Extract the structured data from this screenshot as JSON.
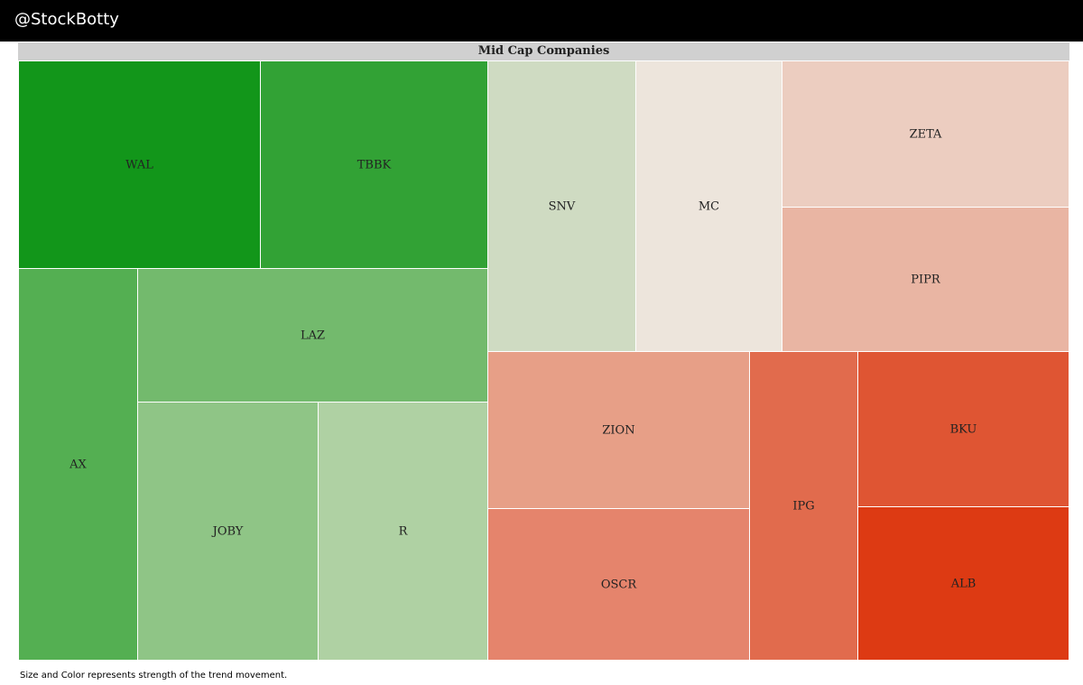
{
  "header": {
    "brand": "@StockBotty"
  },
  "footnote": "Size and Color represents strength of the trend movement.",
  "chart_data": {
    "type": "treemap",
    "title": "Mid Cap Companies",
    "items": [
      {
        "label": "WAL",
        "color": "#12961a",
        "direction": "up"
      },
      {
        "label": "TBBK",
        "color": "#32a235",
        "direction": "up"
      },
      {
        "label": "AX",
        "color": "#54af52",
        "direction": "up"
      },
      {
        "label": "LAZ",
        "color": "#73ba6d",
        "direction": "up"
      },
      {
        "label": "JOBY",
        "color": "#8fc586",
        "direction": "up"
      },
      {
        "label": "R",
        "color": "#afd1a3",
        "direction": "up"
      },
      {
        "label": "SNV",
        "color": "#cfdbc2",
        "direction": "up"
      },
      {
        "label": "MC",
        "color": "#ede5dc",
        "direction": "down"
      },
      {
        "label": "ZETA",
        "color": "#eccdc0",
        "direction": "down"
      },
      {
        "label": "PIPR",
        "color": "#e9b5a3",
        "direction": "down"
      },
      {
        "label": "ZION",
        "color": "#e79f87",
        "direction": "down"
      },
      {
        "label": "OSCR",
        "color": "#e5846c",
        "direction": "down"
      },
      {
        "label": "IPG",
        "color": "#e16b4d",
        "direction": "down"
      },
      {
        "label": "BKU",
        "color": "#df5533",
        "direction": "down"
      },
      {
        "label": "ALB",
        "color": "#dd3a13",
        "direction": "down"
      }
    ]
  }
}
